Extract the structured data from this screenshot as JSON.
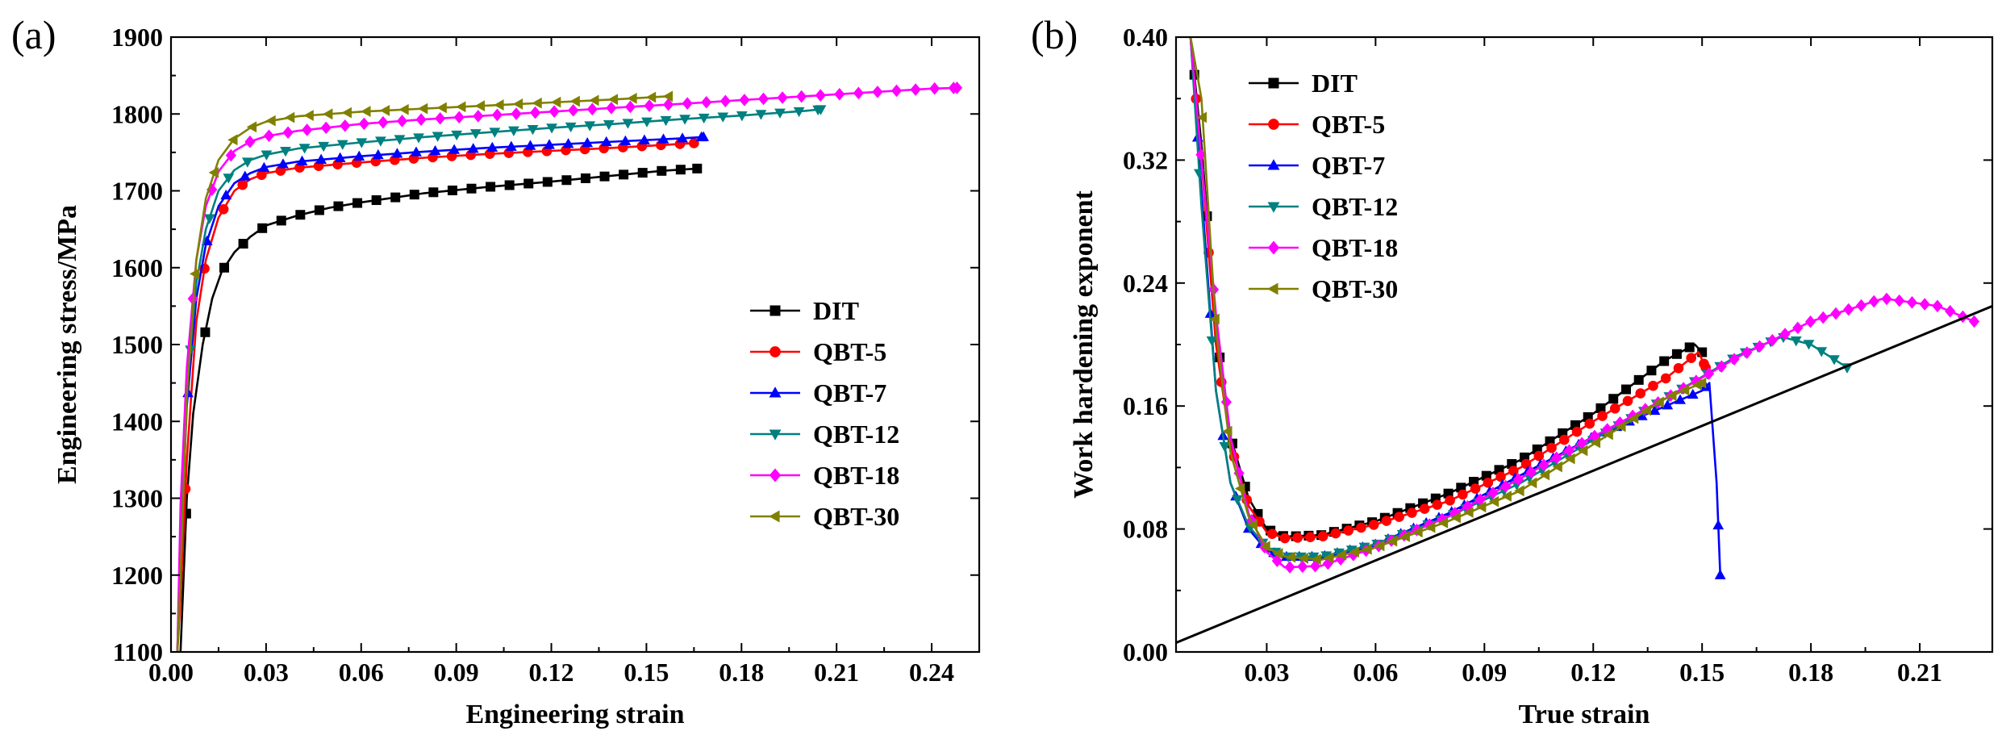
{
  "chart_data": [
    {
      "type": "line",
      "panel_label": "(a)",
      "xlabel": "Engineering strain",
      "ylabel": "Engineering stress/MPa",
      "xlim": [
        0.0,
        0.255
      ],
      "ylim": [
        1100,
        1900
      ],
      "xticks": [
        0.0,
        0.03,
        0.06,
        0.09,
        0.12,
        0.15,
        0.18,
        0.21,
        0.24
      ],
      "xtick_labels": [
        "0.00",
        "0.03",
        "0.06",
        "0.09",
        "0.12",
        "0.15",
        "0.18",
        "0.21",
        "0.24"
      ],
      "yticks": [
        1100,
        1200,
        1300,
        1400,
        1500,
        1600,
        1700,
        1800,
        1900
      ],
      "ytick_labels": [
        "1100",
        "1200",
        "1300",
        "1400",
        "1500",
        "1600",
        "1700",
        "1800",
        "1900"
      ],
      "legend_position": "right",
      "series": [
        {
          "name": "DIT",
          "color": "#000000",
          "marker": "square",
          "x": [
            0.003,
            0.005,
            0.007,
            0.01,
            0.013,
            0.016,
            0.02,
            0.025,
            0.03,
            0.04,
            0.05,
            0.06,
            0.08,
            0.1,
            0.12,
            0.14,
            0.155,
            0.166
          ],
          "y": [
            1100,
            1300,
            1410,
            1500,
            1560,
            1595,
            1620,
            1640,
            1655,
            1668,
            1678,
            1685,
            1697,
            1705,
            1712,
            1720,
            1726,
            1729
          ]
        },
        {
          "name": "QBT-5",
          "color": "#ff0000",
          "marker": "circle",
          "x": [
            0.002,
            0.003,
            0.005,
            0.008,
            0.011,
            0.015,
            0.02,
            0.025,
            0.03,
            0.04,
            0.06,
            0.08,
            0.1,
            0.12,
            0.14,
            0.165
          ],
          "y": [
            1100,
            1170,
            1350,
            1530,
            1610,
            1665,
            1700,
            1715,
            1723,
            1730,
            1737,
            1743,
            1748,
            1752,
            1756,
            1762
          ]
        },
        {
          "name": "QBT-7",
          "color": "#0000ff",
          "marker": "triangle-up",
          "x": [
            0.002,
            0.003,
            0.005,
            0.008,
            0.011,
            0.015,
            0.02,
            0.025,
            0.03,
            0.04,
            0.06,
            0.08,
            0.1,
            0.12,
            0.14,
            0.16,
            0.168
          ],
          "y": [
            1100,
            1230,
            1420,
            1560,
            1630,
            1680,
            1710,
            1723,
            1731,
            1738,
            1745,
            1751,
            1756,
            1760,
            1764,
            1768,
            1770
          ]
        },
        {
          "name": "QBT-12",
          "color": "#008080",
          "marker": "triangle-down",
          "x": [
            0.002,
            0.003,
            0.005,
            0.008,
            0.011,
            0.015,
            0.02,
            0.025,
            0.03,
            0.04,
            0.06,
            0.08,
            0.1,
            0.12,
            0.14,
            0.16,
            0.18,
            0.2,
            0.205
          ],
          "y": [
            1100,
            1250,
            1440,
            1580,
            1650,
            1700,
            1727,
            1740,
            1747,
            1755,
            1763,
            1770,
            1776,
            1782,
            1787,
            1793,
            1798,
            1804,
            1806
          ]
        },
        {
          "name": "QBT-18",
          "color": "#ff00ff",
          "marker": "diamond",
          "x": [
            0.002,
            0.003,
            0.005,
            0.008,
            0.011,
            0.015,
            0.02,
            0.025,
            0.03,
            0.04,
            0.06,
            0.08,
            0.1,
            0.12,
            0.14,
            0.16,
            0.18,
            0.2,
            0.22,
            0.24,
            0.248
          ],
          "y": [
            1100,
            1290,
            1470,
            1610,
            1680,
            1725,
            1752,
            1764,
            1771,
            1778,
            1787,
            1793,
            1798,
            1803,
            1808,
            1813,
            1818,
            1823,
            1828,
            1833,
            1834
          ]
        },
        {
          "name": "QBT-30",
          "color": "#808000",
          "marker": "triangle-left",
          "x": [
            0.002,
            0.003,
            0.005,
            0.008,
            0.011,
            0.015,
            0.02,
            0.025,
            0.03,
            0.04,
            0.06,
            0.08,
            0.1,
            0.12,
            0.14,
            0.157
          ],
          "y": [
            1100,
            1200,
            1430,
            1610,
            1690,
            1740,
            1768,
            1782,
            1790,
            1797,
            1803,
            1807,
            1811,
            1815,
            1819,
            1823
          ]
        }
      ]
    },
    {
      "type": "line",
      "panel_label": "(b)",
      "xlabel": "True strain",
      "ylabel": "Work hardening exponent",
      "xlim": [
        0.005,
        0.23
      ],
      "ylim": [
        0.0,
        0.4
      ],
      "xticks": [
        0.03,
        0.06,
        0.09,
        0.12,
        0.15,
        0.18,
        0.21
      ],
      "xtick_labels": [
        "0.03",
        "0.06",
        "0.09",
        "0.12",
        "0.15",
        "0.18",
        "0.21"
      ],
      "yticks": [
        0.0,
        0.08,
        0.16,
        0.24,
        0.32,
        0.4
      ],
      "ytick_labels": [
        "0.00",
        "0.08",
        "0.16",
        "0.24",
        "0.32",
        "0.40"
      ],
      "legend_position": "top-left",
      "series": [
        {
          "name": "DIT",
          "color": "#000000",
          "marker": "square",
          "x": [
            0.009,
            0.012,
            0.016,
            0.02,
            0.025,
            0.03,
            0.035,
            0.045,
            0.06,
            0.08,
            0.1,
            0.12,
            0.14,
            0.148,
            0.15
          ],
          "y": [
            0.4,
            0.33,
            0.21,
            0.14,
            0.1,
            0.08,
            0.075,
            0.076,
            0.085,
            0.103,
            0.125,
            0.155,
            0.19,
            0.2,
            0.195
          ]
        },
        {
          "name": "QBT-5",
          "color": "#ff0000",
          "marker": "circle",
          "x": [
            0.009,
            0.012,
            0.016,
            0.02,
            0.025,
            0.03,
            0.035,
            0.045,
            0.06,
            0.08,
            0.1,
            0.12,
            0.14,
            0.149,
            0.151
          ],
          "y": [
            0.4,
            0.32,
            0.2,
            0.135,
            0.095,
            0.078,
            0.074,
            0.075,
            0.083,
            0.098,
            0.12,
            0.15,
            0.178,
            0.195,
            0.185
          ]
        },
        {
          "name": "QBT-7",
          "color": "#0000ff",
          "marker": "triangle-up",
          "x": [
            0.009,
            0.012,
            0.016,
            0.02,
            0.025,
            0.03,
            0.035,
            0.045,
            0.06,
            0.08,
            0.1,
            0.12,
            0.14,
            0.15,
            0.152,
            0.154,
            0.155
          ],
          "y": [
            0.4,
            0.3,
            0.17,
            0.11,
            0.08,
            0.066,
            0.062,
            0.062,
            0.07,
            0.09,
            0.115,
            0.14,
            0.16,
            0.17,
            0.175,
            0.11,
            0.05
          ]
        },
        {
          "name": "QBT-12",
          "color": "#008080",
          "marker": "triangle-down",
          "x": [
            0.009,
            0.012,
            0.016,
            0.02,
            0.025,
            0.03,
            0.035,
            0.045,
            0.06,
            0.08,
            0.1,
            0.12,
            0.14,
            0.16,
            0.172,
            0.18,
            0.19
          ],
          "y": [
            0.4,
            0.29,
            0.17,
            0.11,
            0.082,
            0.068,
            0.062,
            0.062,
            0.07,
            0.088,
            0.11,
            0.138,
            0.165,
            0.193,
            0.205,
            0.2,
            0.185
          ]
        },
        {
          "name": "QBT-18",
          "color": "#ff00ff",
          "marker": "diamond",
          "x": [
            0.009,
            0.012,
            0.016,
            0.02,
            0.025,
            0.03,
            0.035,
            0.045,
            0.06,
            0.08,
            0.1,
            0.12,
            0.14,
            0.16,
            0.18,
            0.2,
            0.215,
            0.225
          ],
          "y": [
            0.4,
            0.32,
            0.22,
            0.14,
            0.09,
            0.065,
            0.055,
            0.056,
            0.068,
            0.088,
            0.113,
            0.14,
            0.165,
            0.192,
            0.215,
            0.23,
            0.225,
            0.215
          ]
        },
        {
          "name": "QBT-30",
          "color": "#808000",
          "marker": "triangle-left",
          "x": [
            0.009,
            0.012,
            0.016,
            0.02,
            0.025,
            0.03,
            0.035,
            0.045,
            0.06,
            0.08,
            0.1,
            0.12,
            0.14,
            0.15
          ],
          "y": [
            0.4,
            0.36,
            0.21,
            0.13,
            0.088,
            0.068,
            0.062,
            0.06,
            0.068,
            0.085,
            0.105,
            0.135,
            0.165,
            0.175
          ]
        },
        {
          "name": "Linear reference",
          "color": "#000000",
          "marker": "none",
          "legend": false,
          "x": [
            0.005,
            0.23
          ],
          "y": [
            0.006,
            0.225
          ]
        }
      ]
    }
  ]
}
